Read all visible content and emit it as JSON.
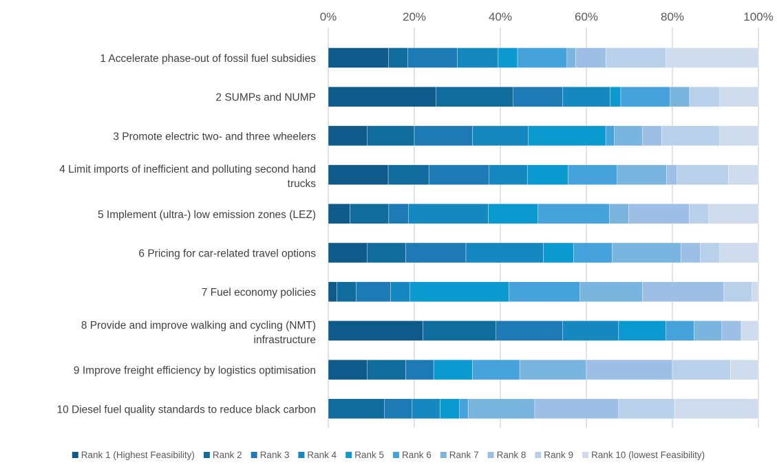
{
  "chart_data": {
    "type": "bar",
    "orientation": "horizontal",
    "stacked": "percent",
    "title": "",
    "xlabel": "",
    "ylabel": "",
    "xlim": [
      0,
      100
    ],
    "x_ticks": [
      "0%",
      "20%",
      "40%",
      "60%",
      "80%",
      "100%"
    ],
    "x_axis_position": "top",
    "grid": true,
    "legend_position": "bottom",
    "categories": [
      {
        "line1": "1 Accelerate phase-out of fossil fuel subsidies",
        "line2": ""
      },
      {
        "line1": "2 SUMPs and NUMP",
        "line2": ""
      },
      {
        "line1": "3 Promote electric two- and three wheelers",
        "line2": ""
      },
      {
        "line1": "4 Limit imports of inefficient and polluting second hand",
        "line2": "trucks"
      },
      {
        "line1": "5 Implement (ultra-) low emission zones (LEZ)",
        "line2": ""
      },
      {
        "line1": "6 Pricing for car-related travel options",
        "line2": ""
      },
      {
        "line1": "7 Fuel economy policies",
        "line2": ""
      },
      {
        "line1": "8 Provide and improve walking and cycling (NMT)",
        "line2": "infrastructure"
      },
      {
        "line1": "9 Improve freight efficiency by logistics optimisation",
        "line2": ""
      },
      {
        "line1": "10 Diesel fuel quality standards to reduce black carbon",
        "line2": ""
      }
    ],
    "series": [
      {
        "name": "Rank 1 (Highest Feasibility)",
        "color": "#0e5a8a",
        "values": [
          14,
          25,
          9,
          14,
          5,
          9,
          2,
          22,
          9,
          0
        ]
      },
      {
        "name": "Rank 2",
        "color": "#116c9e",
        "values": [
          4.5,
          18,
          11,
          9.5,
          9,
          9,
          4.5,
          17,
          9,
          13
        ]
      },
      {
        "name": "Rank 3",
        "color": "#1e7ab5",
        "values": [
          11.5,
          11.5,
          13.5,
          14,
          4.5,
          14,
          8,
          15.5,
          6.5,
          6.5
        ]
      },
      {
        "name": "Rank 4",
        "color": "#1688c0",
        "values": [
          9.5,
          11,
          13,
          9,
          18.5,
          18,
          4.5,
          13,
          0,
          6.5
        ]
      },
      {
        "name": "Rank 5",
        "color": "#0a9ad0",
        "values": [
          4.5,
          2.5,
          18,
          9.5,
          11.5,
          7,
          23,
          11,
          9,
          4.5
        ]
      },
      {
        "name": "Rank 6",
        "color": "#45a2db",
        "values": [
          11.5,
          11.5,
          2,
          11.5,
          16.5,
          9,
          16.5,
          6.5,
          11,
          2
        ]
      },
      {
        "name": "Rank 7",
        "color": "#79b5df",
        "values": [
          2,
          4.5,
          6.5,
          11.5,
          4.5,
          16,
          14.5,
          6.5,
          15.5,
          15.5
        ]
      },
      {
        "name": "Rank 8",
        "color": "#9dbfe5",
        "values": [
          7,
          0,
          4.5,
          2.5,
          14,
          4.5,
          19,
          4.5,
          20,
          19.5
        ]
      },
      {
        "name": "Rank 9",
        "color": "#b8d0ea",
        "values": [
          14,
          7,
          13.5,
          12,
          4.5,
          4.5,
          6.5,
          0,
          13.5,
          13
        ]
      },
      {
        "name": "Rank 10 (lowest Feasibility)",
        "color": "#cfdcee",
        "values": [
          21.5,
          9,
          9,
          7,
          11.5,
          9,
          1.5,
          4,
          6.5,
          19.5
        ]
      }
    ]
  }
}
